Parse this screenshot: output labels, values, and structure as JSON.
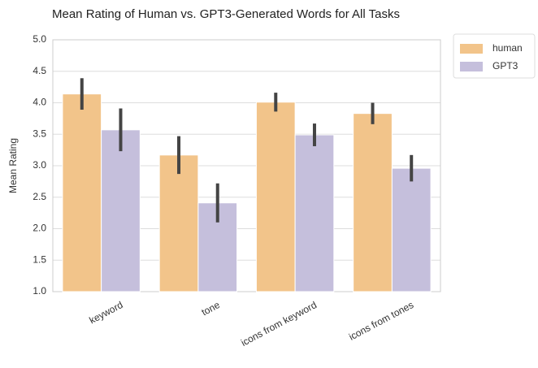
{
  "chart_data": {
    "type": "bar",
    "title": "Mean Rating of Human vs. GPT3-Generated Words for All Tasks",
    "ylabel": "Mean Rating",
    "categories": [
      "keyword",
      "tone",
      "icons from keyword",
      "icons from tones"
    ],
    "series": [
      {
        "name": "human",
        "color": "#f2c48a",
        "values": [
          4.14,
          3.17,
          4.01,
          3.83
        ],
        "errors": [
          0.25,
          0.3,
          0.15,
          0.17
        ]
      },
      {
        "name": "GPT3",
        "color": "#c5bfdc",
        "values": [
          3.57,
          2.41,
          3.49,
          2.96
        ],
        "errors": [
          0.34,
          0.31,
          0.18,
          0.21
        ]
      }
    ],
    "ylim": [
      1,
      5
    ],
    "yticks": [
      {
        "value": 1,
        "label": "1.0"
      },
      {
        "value": 1.5,
        "label": "1.5"
      },
      {
        "value": 2,
        "label": "2.0"
      },
      {
        "value": 2.5,
        "label": "2.5"
      },
      {
        "value": 3,
        "label": "3.0"
      },
      {
        "value": 3.5,
        "label": "3.5"
      },
      {
        "value": 4,
        "label": "4.0"
      },
      {
        "value": 4.5,
        "label": "4.5"
      },
      {
        "value": 5,
        "label": "5.0"
      }
    ],
    "grid": true,
    "legend": "outside-upper-right"
  }
}
